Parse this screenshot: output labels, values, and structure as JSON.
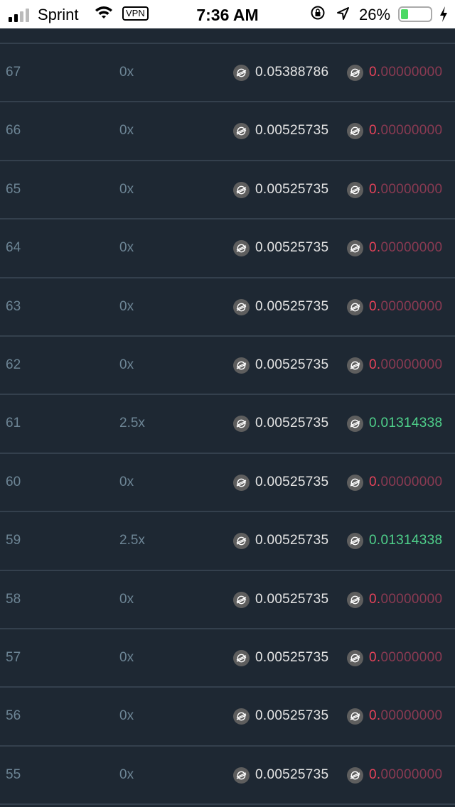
{
  "status_bar": {
    "carrier": "Sprint",
    "vpn": "VPN",
    "time": "7:36 AM",
    "battery": "26%",
    "battery_level": 0.26,
    "signal_bars": 2
  },
  "colors": {
    "background": "#1e2833",
    "win": "#4fd18b",
    "loss": "#e8435a",
    "loss_dim": "#8a3a52"
  },
  "coin_icon": "stellar-lumens-icon",
  "rows": [
    {
      "id": "67",
      "multiplier": "0x",
      "bet": "0.05388786",
      "payout_lead": "0.",
      "payout_rest": "00000000",
      "win": false
    },
    {
      "id": "66",
      "multiplier": "0x",
      "bet": "0.00525735",
      "payout_lead": "0.",
      "payout_rest": "00000000",
      "win": false
    },
    {
      "id": "65",
      "multiplier": "0x",
      "bet": "0.00525735",
      "payout_lead": "0.",
      "payout_rest": "00000000",
      "win": false
    },
    {
      "id": "64",
      "multiplier": "0x",
      "bet": "0.00525735",
      "payout_lead": "0.",
      "payout_rest": "00000000",
      "win": false
    },
    {
      "id": "63",
      "multiplier": "0x",
      "bet": "0.00525735",
      "payout_lead": "0.",
      "payout_rest": "00000000",
      "win": false
    },
    {
      "id": "62",
      "multiplier": "0x",
      "bet": "0.00525735",
      "payout_lead": "0.",
      "payout_rest": "00000000",
      "win": false
    },
    {
      "id": "61",
      "multiplier": "2.5x",
      "bet": "0.00525735",
      "payout_lead": "0.",
      "payout_rest": "01314338",
      "win": true
    },
    {
      "id": "60",
      "multiplier": "0x",
      "bet": "0.00525735",
      "payout_lead": "0.",
      "payout_rest": "00000000",
      "win": false
    },
    {
      "id": "59",
      "multiplier": "2.5x",
      "bet": "0.00525735",
      "payout_lead": "0.",
      "payout_rest": "01314338",
      "win": true
    },
    {
      "id": "58",
      "multiplier": "0x",
      "bet": "0.00525735",
      "payout_lead": "0.",
      "payout_rest": "00000000",
      "win": false
    },
    {
      "id": "57",
      "multiplier": "0x",
      "bet": "0.00525735",
      "payout_lead": "0.",
      "payout_rest": "00000000",
      "win": false
    },
    {
      "id": "56",
      "multiplier": "0x",
      "bet": "0.00525735",
      "payout_lead": "0.",
      "payout_rest": "00000000",
      "win": false
    },
    {
      "id": "55",
      "multiplier": "0x",
      "bet": "0.00525735",
      "payout_lead": "0.",
      "payout_rest": "00000000",
      "win": false
    }
  ]
}
